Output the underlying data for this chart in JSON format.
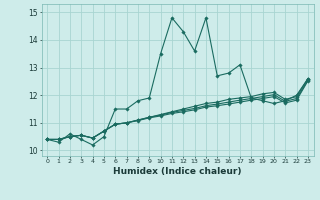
{
  "xlabel": "Humidex (Indice chaleur)",
  "background_color": "#ceecea",
  "grid_color": "#a8d5d1",
  "line_color": "#1a6b60",
  "xlim": [
    -0.5,
    23.5
  ],
  "ylim": [
    9.8,
    15.3
  ],
  "x_ticks": [
    0,
    1,
    2,
    3,
    4,
    5,
    6,
    7,
    8,
    9,
    10,
    11,
    12,
    13,
    14,
    15,
    16,
    17,
    18,
    19,
    20,
    21,
    22,
    23
  ],
  "y_ticks": [
    10,
    11,
    12,
    13,
    14,
    15
  ],
  "series": [
    [
      10.4,
      10.3,
      10.6,
      10.4,
      10.2,
      10.5,
      11.5,
      11.5,
      11.8,
      11.9,
      13.5,
      14.8,
      14.3,
      13.6,
      14.8,
      12.7,
      12.8,
      13.1,
      11.9,
      11.8,
      11.7,
      11.8,
      12.0,
      12.6
    ],
    [
      10.4,
      10.4,
      10.5,
      10.55,
      10.45,
      10.7,
      10.95,
      11.0,
      11.1,
      11.2,
      11.3,
      11.4,
      11.5,
      11.6,
      11.7,
      11.75,
      11.85,
      11.9,
      11.95,
      12.05,
      12.1,
      11.85,
      11.95,
      12.6
    ],
    [
      10.4,
      10.4,
      10.5,
      10.55,
      10.45,
      10.7,
      10.95,
      11.0,
      11.1,
      11.2,
      11.28,
      11.38,
      11.45,
      11.52,
      11.62,
      11.68,
      11.75,
      11.82,
      11.88,
      11.95,
      12.02,
      11.78,
      11.88,
      12.55
    ],
    [
      10.4,
      10.4,
      10.5,
      10.55,
      10.45,
      10.7,
      10.95,
      11.0,
      11.08,
      11.18,
      11.25,
      11.34,
      11.4,
      11.47,
      11.57,
      11.62,
      11.68,
      11.75,
      11.82,
      11.88,
      11.95,
      11.72,
      11.82,
      12.52
    ]
  ]
}
